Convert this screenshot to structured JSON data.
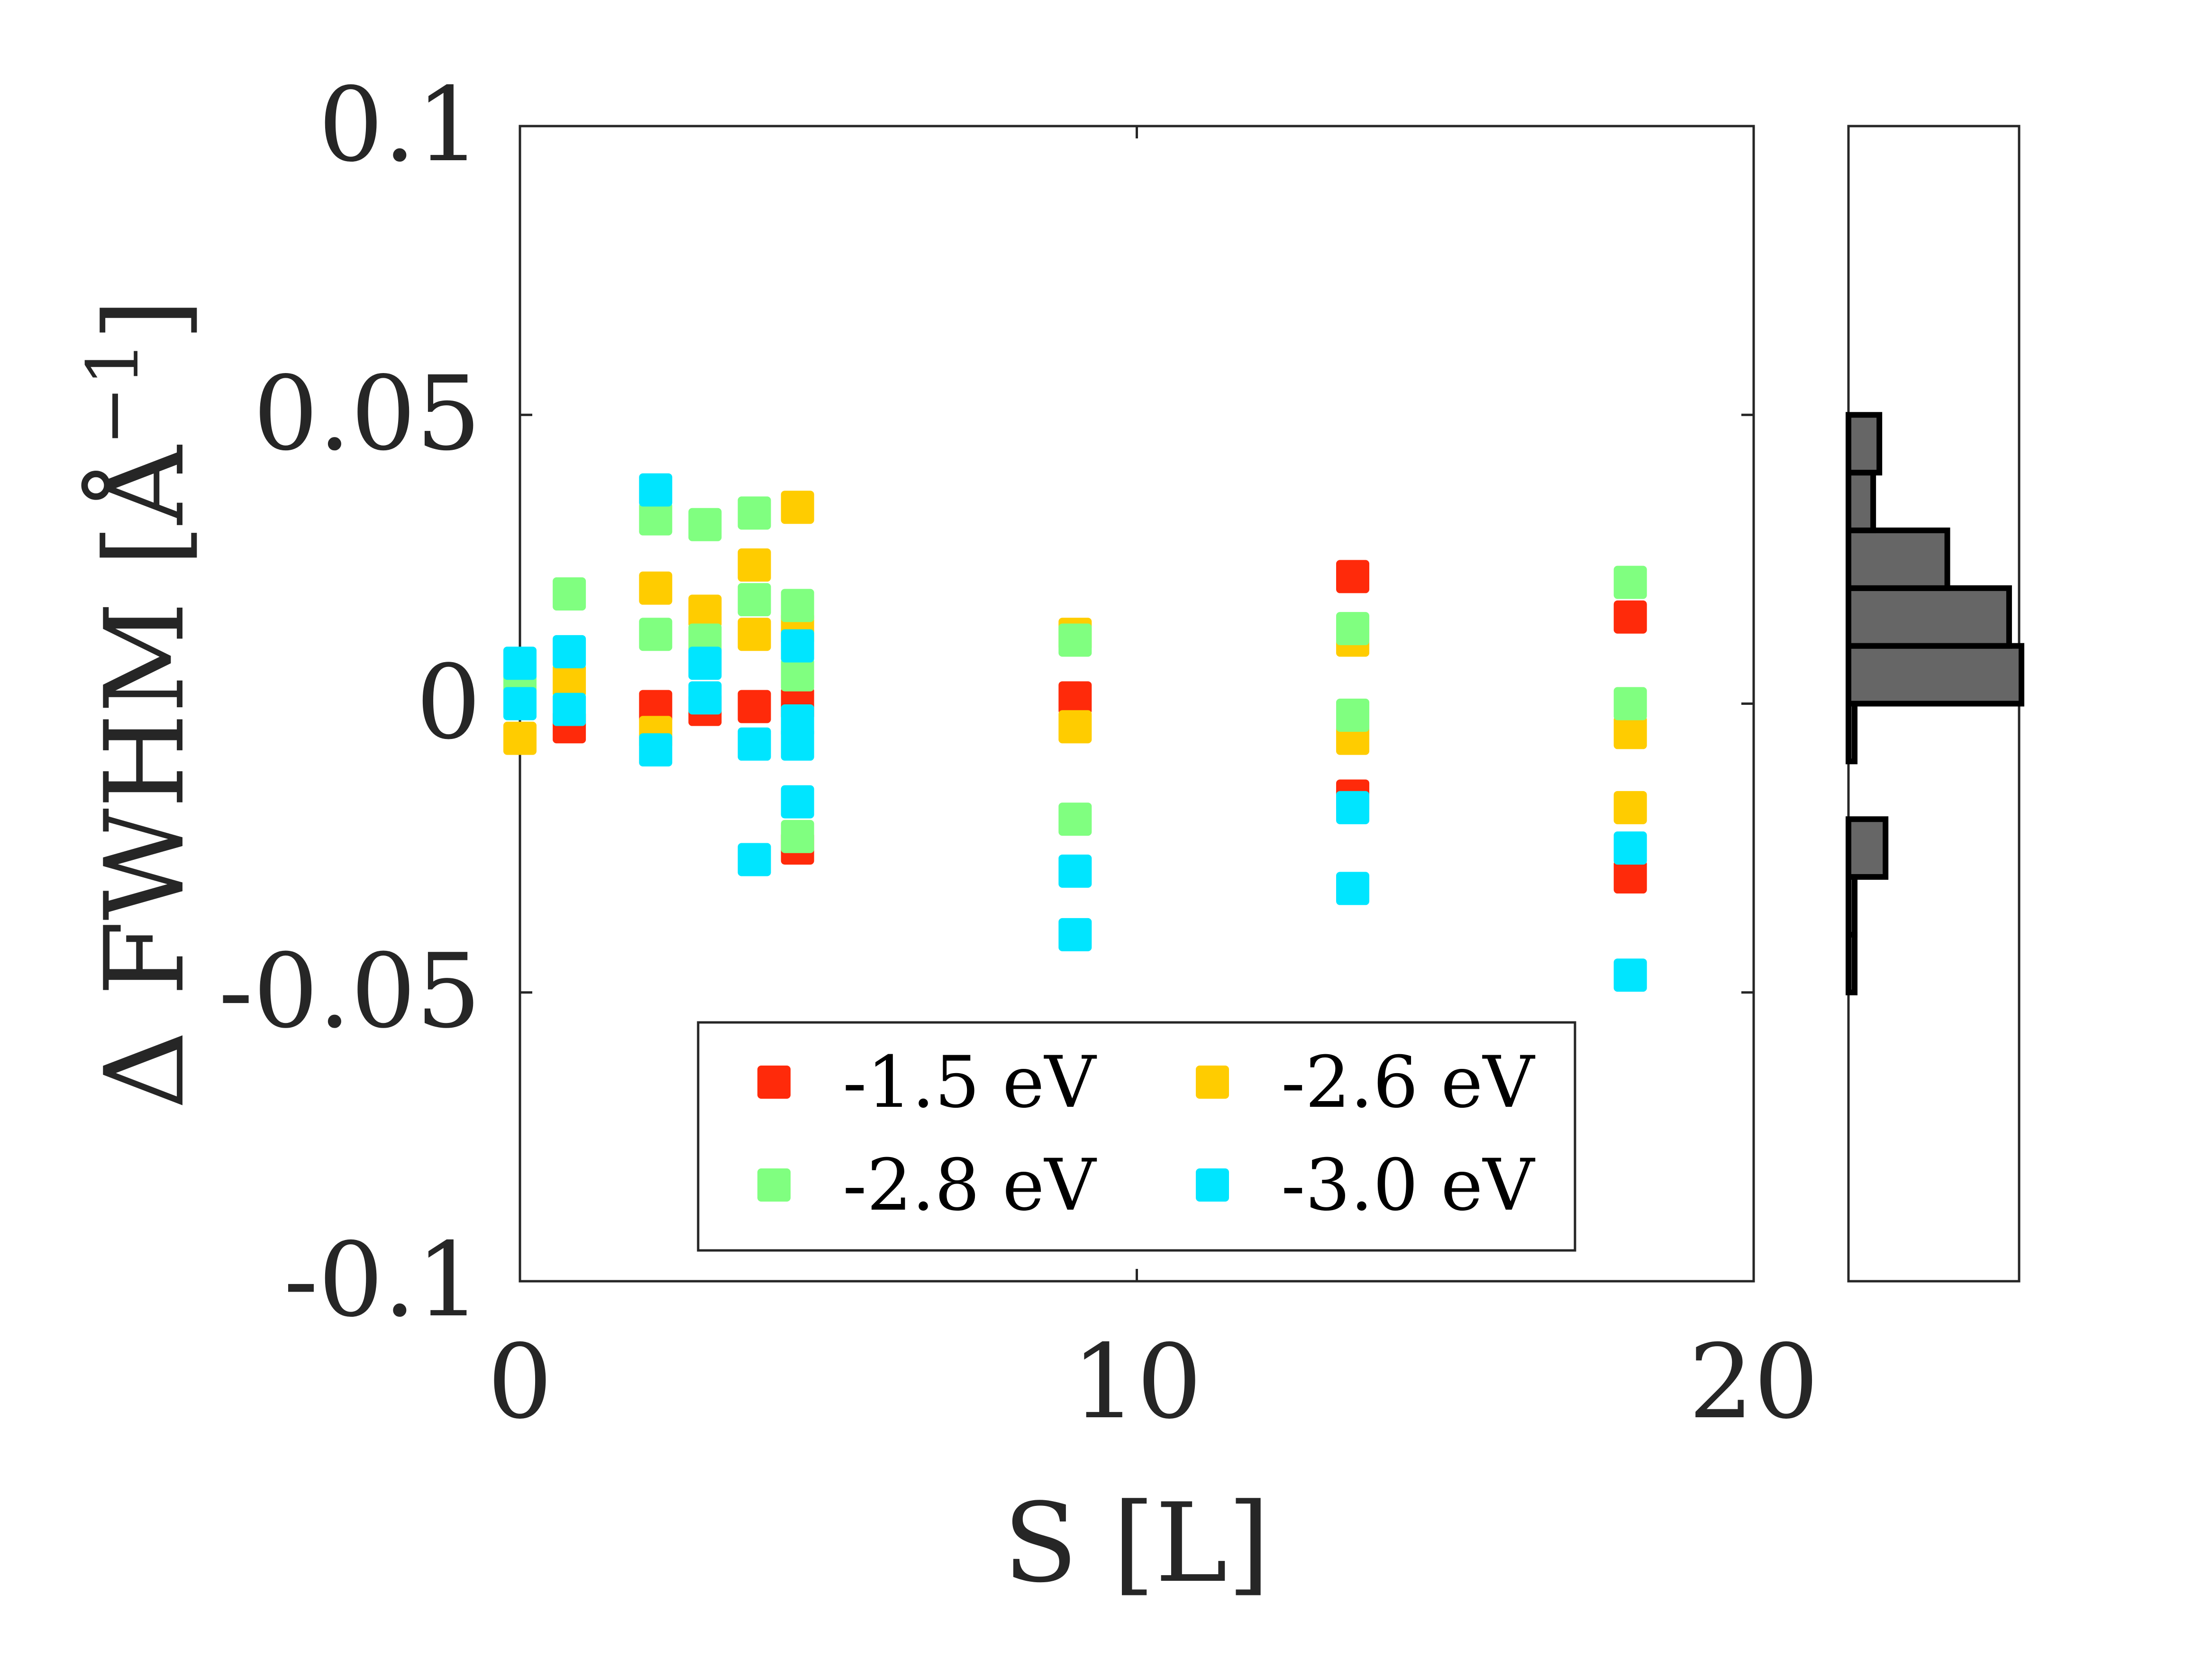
{
  "chart_data": {
    "type": "scatter",
    "xlabel": "S [L]",
    "ylabel_prefix": "Δ FWHM [Å",
    "ylabel_exponent": "−1",
    "ylabel_suffix": "]",
    "xlim": [
      0,
      20
    ],
    "ylim": [
      -0.1,
      0.1
    ],
    "xticks": [
      0,
      10,
      20
    ],
    "xtick_labels": [
      "0",
      "10",
      "20"
    ],
    "yticks": [
      -0.1,
      -0.05,
      0,
      0.05,
      0.1
    ],
    "ytick_labels": [
      "-0.1",
      "-0.05",
      "0",
      "0.05",
      "0.1"
    ],
    "legend_position": "bottom-center",
    "series": [
      {
        "name": "-1.5 eV",
        "color": "#FF2A0A",
        "points": [
          [
            0.8,
            -0.004
          ],
          [
            2.2,
            -0.0005
          ],
          [
            3.0,
            -0.001
          ],
          [
            3.8,
            -0.0005
          ],
          [
            4.5,
            0.0
          ],
          [
            4.5,
            -0.025
          ],
          [
            9.0,
            0.001
          ],
          [
            13.5,
            0.022
          ],
          [
            13.5,
            -0.016
          ],
          [
            18.0,
            0.015
          ],
          [
            18.0,
            -0.03
          ]
        ]
      },
      {
        "name": "-2.6 eV",
        "color": "#FFCC00",
        "points": [
          [
            0.0,
            -0.006
          ],
          [
            0.8,
            0.004
          ],
          [
            2.2,
            0.02
          ],
          [
            2.2,
            -0.005
          ],
          [
            3.0,
            0.016
          ],
          [
            3.8,
            0.024
          ],
          [
            3.8,
            0.012
          ],
          [
            4.5,
            0.034
          ],
          [
            4.5,
            0.013
          ],
          [
            9.0,
            0.012
          ],
          [
            9.0,
            -0.004
          ],
          [
            13.5,
            0.011
          ],
          [
            13.5,
            -0.006
          ],
          [
            18.0,
            -0.005
          ],
          [
            18.0,
            -0.018
          ]
        ]
      },
      {
        "name": "-2.8 eV",
        "color": "#80FF80",
        "points": [
          [
            0.0,
            0.003
          ],
          [
            0.8,
            0.019
          ],
          [
            2.2,
            0.032
          ],
          [
            2.2,
            0.012
          ],
          [
            3.0,
            0.031
          ],
          [
            3.0,
            0.011
          ],
          [
            3.8,
            0.033
          ],
          [
            3.8,
            0.018
          ],
          [
            4.5,
            0.017
          ],
          [
            4.5,
            0.005
          ],
          [
            4.5,
            -0.023
          ],
          [
            9.0,
            0.011
          ],
          [
            9.0,
            -0.02
          ],
          [
            13.5,
            0.013
          ],
          [
            13.5,
            -0.002
          ],
          [
            18.0,
            0.021
          ],
          [
            18.0,
            0.0
          ]
        ]
      },
      {
        "name": "-3.0 eV",
        "color": "#00E5FF",
        "points": [
          [
            0.0,
            0.007
          ],
          [
            0.0,
            0.0
          ],
          [
            0.8,
            0.009
          ],
          [
            0.8,
            -0.001
          ],
          [
            2.2,
            0.037
          ],
          [
            2.2,
            -0.008
          ],
          [
            3.0,
            0.007
          ],
          [
            3.0,
            0.001
          ],
          [
            3.8,
            -0.007
          ],
          [
            3.8,
            -0.027
          ],
          [
            4.5,
            0.01
          ],
          [
            4.5,
            -0.003
          ],
          [
            4.5,
            -0.007
          ],
          [
            4.5,
            -0.017
          ],
          [
            9.0,
            -0.029
          ],
          [
            9.0,
            -0.04
          ],
          [
            13.5,
            -0.018
          ],
          [
            13.5,
            -0.032
          ],
          [
            18.0,
            -0.025
          ],
          [
            18.0,
            -0.047
          ]
        ]
      }
    ],
    "histogram": {
      "orientation": "horizontal",
      "bar_color": "#666666",
      "edge_color": "#000000",
      "bin_edges": [
        -0.05,
        -0.04,
        -0.03,
        -0.02,
        -0.01,
        0.0,
        0.01,
        0.02,
        0.03,
        0.04
      ],
      "counts": [
        1,
        1,
        6,
        0,
        1,
        28,
        26,
        16,
        4,
        5
      ],
      "count_max": 28
    }
  }
}
